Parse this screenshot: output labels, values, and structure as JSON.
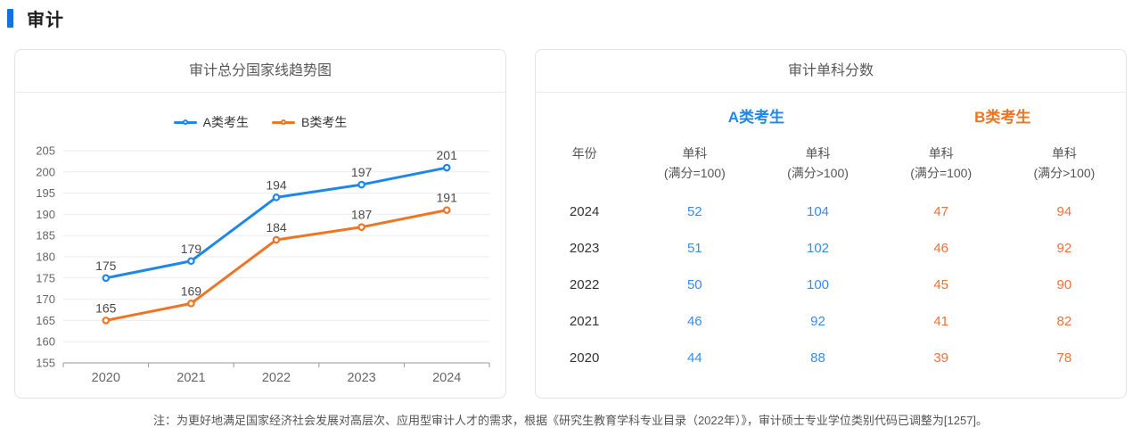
{
  "page_title": {
    "label": "审计",
    "accent_color": "#1273e0"
  },
  "chart_card": {
    "title": "审计总分国家线趋势图"
  },
  "chart_data": {
    "type": "line",
    "title": "审计总分国家线趋势图",
    "categories": [
      "2020",
      "2021",
      "2022",
      "2023",
      "2024"
    ],
    "series": [
      {
        "name": "A类考生",
        "color": "#1e87e8",
        "values": [
          175,
          179,
          194,
          197,
          201
        ]
      },
      {
        "name": "B类考生",
        "color": "#ed7524",
        "values": [
          165,
          169,
          184,
          187,
          191
        ]
      }
    ],
    "xlabel": "",
    "ylabel": "",
    "ylim": [
      155,
      205
    ],
    "ytick_step": 5,
    "grid": true,
    "legend_position": "top",
    "data_labels": true,
    "axis_color": "#999999",
    "grid_color": "#ebebeb",
    "tick_label_color": "#666666",
    "data_label_color": "#4a4a4a"
  },
  "table_card": {
    "title": "审计单科分数",
    "group_headers": [
      {
        "label": "A类考生",
        "color": "#1e87e8"
      },
      {
        "label": "B类考生",
        "color": "#f0731f"
      }
    ],
    "columns": [
      {
        "line1": "年份",
        "line2": ""
      },
      {
        "line1": "单科",
        "line2": "(满分=100)"
      },
      {
        "line1": "单科",
        "line2": "(满分>100)"
      },
      {
        "line1": "单科",
        "line2": "(满分=100)"
      },
      {
        "line1": "单科",
        "line2": "(满分>100)"
      }
    ],
    "value_colors": {
      "a": "#3a8be8",
      "b": "#f0703c"
    },
    "rows": [
      {
        "year": "2024",
        "values": [
          52,
          104,
          47,
          94
        ]
      },
      {
        "year": "2023",
        "values": [
          51,
          102,
          46,
          92
        ]
      },
      {
        "year": "2022",
        "values": [
          50,
          100,
          45,
          90
        ]
      },
      {
        "year": "2021",
        "values": [
          46,
          92,
          41,
          82
        ]
      },
      {
        "year": "2020",
        "values": [
          44,
          88,
          39,
          78
        ]
      }
    ]
  },
  "footnote": "注：为更好地满足国家经济社会发展对高层次、应用型审计人才的需求，根据《研究生教育学科专业目录（2022年）》，审计硕士专业学位类别代码已调整为[1257]。"
}
